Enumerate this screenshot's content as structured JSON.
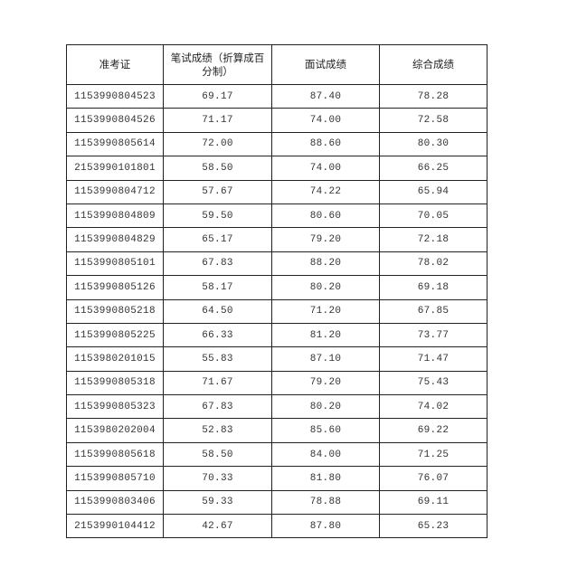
{
  "table": {
    "headers": [
      "准考证",
      "笔试成绩（折算成百分制）",
      "面试成绩",
      "综合成绩"
    ],
    "rows": [
      [
        "1153990804523",
        "69.17",
        "87.40",
        "78.28"
      ],
      [
        "1153990804526",
        "71.17",
        "74.00",
        "72.58"
      ],
      [
        "1153990805614",
        "72.00",
        "88.60",
        "80.30"
      ],
      [
        "2153990101801",
        "58.50",
        "74.00",
        "66.25"
      ],
      [
        "1153990804712",
        "57.67",
        "74.22",
        "65.94"
      ],
      [
        "1153990804809",
        "59.50",
        "80.60",
        "70.05"
      ],
      [
        "1153990804829",
        "65.17",
        "79.20",
        "72.18"
      ],
      [
        "1153990805101",
        "67.83",
        "88.20",
        "78.02"
      ],
      [
        "1153990805126",
        "58.17",
        "80.20",
        "69.18"
      ],
      [
        "1153990805218",
        "64.50",
        "71.20",
        "67.85"
      ],
      [
        "1153990805225",
        "66.33",
        "81.20",
        "73.77"
      ],
      [
        "1153980201015",
        "55.83",
        "87.10",
        "71.47"
      ],
      [
        "1153990805318",
        "71.67",
        "79.20",
        "75.43"
      ],
      [
        "1153990805323",
        "67.83",
        "80.20",
        "74.02"
      ],
      [
        "1153980202004",
        "52.83",
        "85.60",
        "69.22"
      ],
      [
        "1153990805618",
        "58.50",
        "84.00",
        "71.25"
      ],
      [
        "1153990805710",
        "70.33",
        "81.80",
        "76.07"
      ],
      [
        "1153990803406",
        "59.33",
        "78.88",
        "69.11"
      ],
      [
        "2153990104412",
        "42.67",
        "87.80",
        "65.23"
      ]
    ]
  }
}
